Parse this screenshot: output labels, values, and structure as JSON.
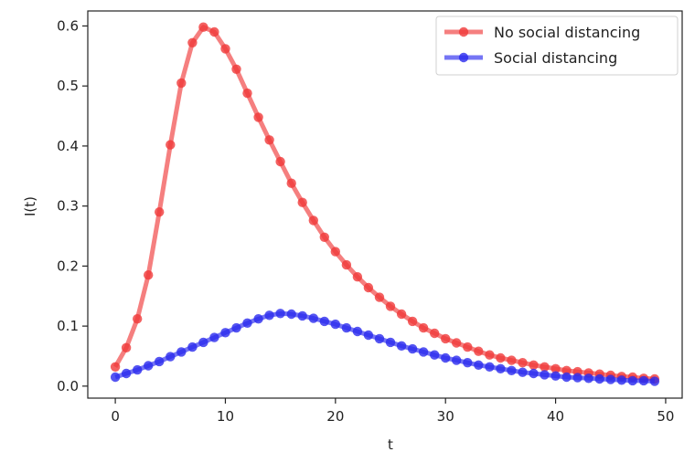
{
  "chart_data": {
    "type": "line",
    "xlabel": "t",
    "ylabel": "I(t)",
    "xlim": [
      -2.5,
      51.5
    ],
    "ylim": [
      -0.02,
      0.625
    ],
    "x_ticks": [
      0,
      10,
      20,
      30,
      40,
      50
    ],
    "y_ticks": [
      0.0,
      0.1,
      0.2,
      0.3,
      0.4,
      0.5,
      0.6
    ],
    "grid": false,
    "legend_position": "top-right",
    "x": [
      0,
      1,
      2,
      3,
      4,
      5,
      6,
      7,
      8,
      9,
      10,
      11,
      12,
      13,
      14,
      15,
      16,
      17,
      18,
      19,
      20,
      21,
      22,
      23,
      24,
      25,
      26,
      27,
      28,
      29,
      30,
      31,
      32,
      33,
      34,
      35,
      36,
      37,
      38,
      39,
      40,
      41,
      42,
      43,
      44,
      45,
      46,
      47,
      48,
      49
    ],
    "series": [
      {
        "name": "No social distancing",
        "color": "#f03a3a",
        "values": [
          0.032,
          0.064,
          0.112,
          0.185,
          0.29,
          0.402,
          0.505,
          0.572,
          0.598,
          0.59,
          0.562,
          0.528,
          0.488,
          0.448,
          0.41,
          0.374,
          0.338,
          0.306,
          0.276,
          0.248,
          0.224,
          0.202,
          0.182,
          0.164,
          0.148,
          0.133,
          0.12,
          0.108,
          0.097,
          0.088,
          0.079,
          0.072,
          0.065,
          0.058,
          0.052,
          0.047,
          0.043,
          0.039,
          0.035,
          0.032,
          0.029,
          0.026,
          0.024,
          0.022,
          0.02,
          0.018,
          0.016,
          0.015,
          0.013,
          0.012
        ]
      },
      {
        "name": "Social distancing",
        "color": "#2b2bee",
        "values": [
          0.015,
          0.021,
          0.027,
          0.034,
          0.041,
          0.049,
          0.057,
          0.065,
          0.073,
          0.081,
          0.089,
          0.097,
          0.105,
          0.112,
          0.118,
          0.121,
          0.12,
          0.117,
          0.113,
          0.108,
          0.103,
          0.097,
          0.091,
          0.085,
          0.079,
          0.073,
          0.067,
          0.062,
          0.057,
          0.052,
          0.047,
          0.043,
          0.039,
          0.035,
          0.032,
          0.029,
          0.026,
          0.023,
          0.021,
          0.019,
          0.017,
          0.015,
          0.014,
          0.013,
          0.012,
          0.011,
          0.01,
          0.009,
          0.009,
          0.008
        ]
      }
    ]
  }
}
